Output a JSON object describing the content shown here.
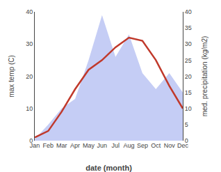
{
  "chart_data": {
    "type": "line",
    "categories": [
      "Jan",
      "Feb",
      "Mar",
      "Apr",
      "May",
      "Jun",
      "Jul",
      "Aug",
      "Sep",
      "Oct",
      "Nov",
      "Dec"
    ],
    "series": [
      {
        "type": "area",
        "color": "#c5cdf5",
        "axis": "y2",
        "values": [
          0.5,
          5.0,
          10.0,
          13.0,
          25.0,
          39.0,
          26.0,
          33.0,
          21.0,
          16.0,
          21.0,
          15.0
        ]
      },
      {
        "type": "line",
        "color": "#c0392b",
        "values": [
          1.0,
          3.0,
          9.0,
          16.0,
          22.0,
          25.0,
          29.0,
          32.0,
          31.0,
          25.0,
          17.0,
          10.0
        ]
      }
    ],
    "xlabel": "date (month)",
    "ylabel": "max temp (C)",
    "y2label": "med. precipitation (kg/m2)",
    "ylim": [
      0,
      40
    ],
    "yticks": [
      0,
      10,
      20,
      30,
      40
    ],
    "y2lim": [
      0,
      40
    ],
    "y2ticks": [
      0,
      5,
      10,
      15,
      20,
      25,
      30,
      35,
      40
    ],
    "grid": false
  }
}
